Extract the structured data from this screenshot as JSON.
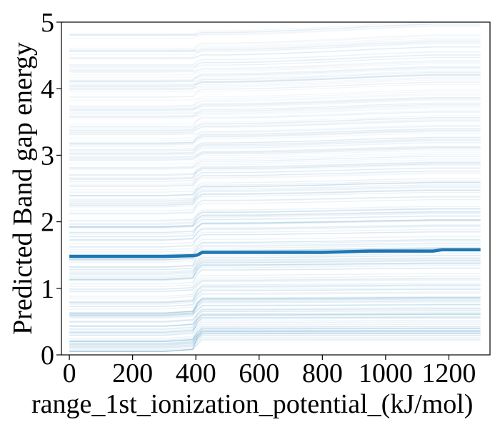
{
  "chart_data": {
    "type": "line",
    "title": "",
    "xlabel": "range_1st_ionization_potential_(kJ/mol)",
    "ylabel": "Predicted Band gap energy",
    "xlim": [
      -25,
      1330
    ],
    "ylim": [
      0,
      5
    ],
    "x_ticks": [
      0,
      200,
      400,
      600,
      800,
      1000,
      1200
    ],
    "y_ticks": [
      0,
      1,
      2,
      3,
      4,
      5
    ],
    "grid": false,
    "legend": "none",
    "colors": {
      "average_line": "#1f77b4",
      "ice_lines": "#1f77b4"
    },
    "x": [
      0,
      100,
      200,
      300,
      390,
      405,
      420,
      440,
      500,
      600,
      700,
      800,
      880,
      950,
      1050,
      1150,
      1180,
      1240,
      1300
    ],
    "series": [
      {
        "role": "average",
        "values": [
          1.48,
          1.48,
          1.48,
          1.48,
          1.49,
          1.5,
          1.54,
          1.54,
          1.54,
          1.54,
          1.54,
          1.54,
          1.55,
          1.56,
          1.56,
          1.56,
          1.58,
          1.58,
          1.58
        ]
      }
    ],
    "ice_bands": [
      {
        "role": "individual-predictions",
        "count": 260,
        "range_low": [
          0.05,
          0.05,
          0.05,
          0.05,
          0.08,
          0.15,
          0.22,
          0.22,
          0.22,
          0.22,
          0.22,
          0.22,
          0.22,
          0.22,
          0.22,
          0.22,
          0.22,
          0.22,
          0.22
        ],
        "range_high": [
          4.85,
          4.85,
          4.85,
          4.85,
          4.85,
          4.85,
          4.87,
          4.87,
          4.87,
          4.88,
          4.9,
          4.92,
          4.94,
          4.96,
          4.98,
          5.0,
          5.0,
          5.0,
          5.0
        ]
      }
    ]
  }
}
